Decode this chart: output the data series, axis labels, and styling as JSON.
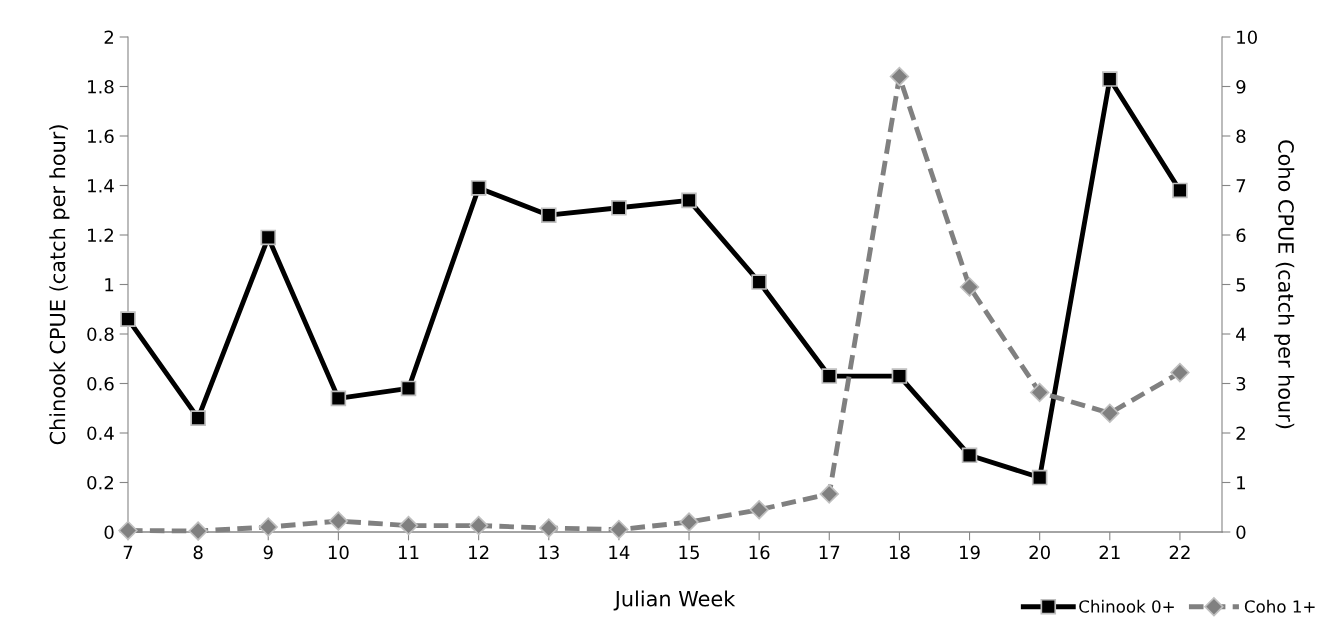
{
  "chart_data": {
    "type": "line",
    "xlabel": "Julian Week",
    "ylabel": "Chinook CPUE (catch per hour)",
    "y2label": "Coho CPUE (catch per hour)",
    "categories": [
      "7",
      "8",
      "9",
      "10",
      "11",
      "12",
      "13",
      "14",
      "15",
      "16",
      "17",
      "18",
      "19",
      "20",
      "21",
      "22"
    ],
    "series": [
      {
        "name": "Chinook 0+",
        "color": "#000000",
        "marker": "square",
        "line_style": "solid",
        "values": [
          0.86,
          0.46,
          1.19,
          0.54,
          0.58,
          1.39,
          1.28,
          1.31,
          1.34,
          1.01,
          0.63,
          0.63,
          0.31,
          0.22,
          1.83,
          1.38
        ]
      },
      {
        "name": "Coho 1+",
        "color": "#808080",
        "marker": "diamond",
        "line_style": "dashed",
        "axis": "y2",
        "values": [
          0.03,
          0.02,
          0.1,
          0.22,
          0.13,
          0.13,
          0.08,
          0.05,
          0.2,
          0.45,
          0.77,
          9.2,
          4.95,
          2.82,
          2.4,
          3.22
        ]
      }
    ],
    "ylim": [
      0,
      2
    ],
    "yticks": [
      0,
      0.2,
      0.4,
      0.6,
      0.8,
      1,
      1.2,
      1.4,
      1.6,
      1.8,
      2
    ],
    "y2lim": [
      0,
      10
    ],
    "y2ticks": [
      0,
      1,
      2,
      3,
      4,
      5,
      6,
      7,
      8,
      9,
      10
    ],
    "grid": false,
    "legend": "bottom right"
  }
}
